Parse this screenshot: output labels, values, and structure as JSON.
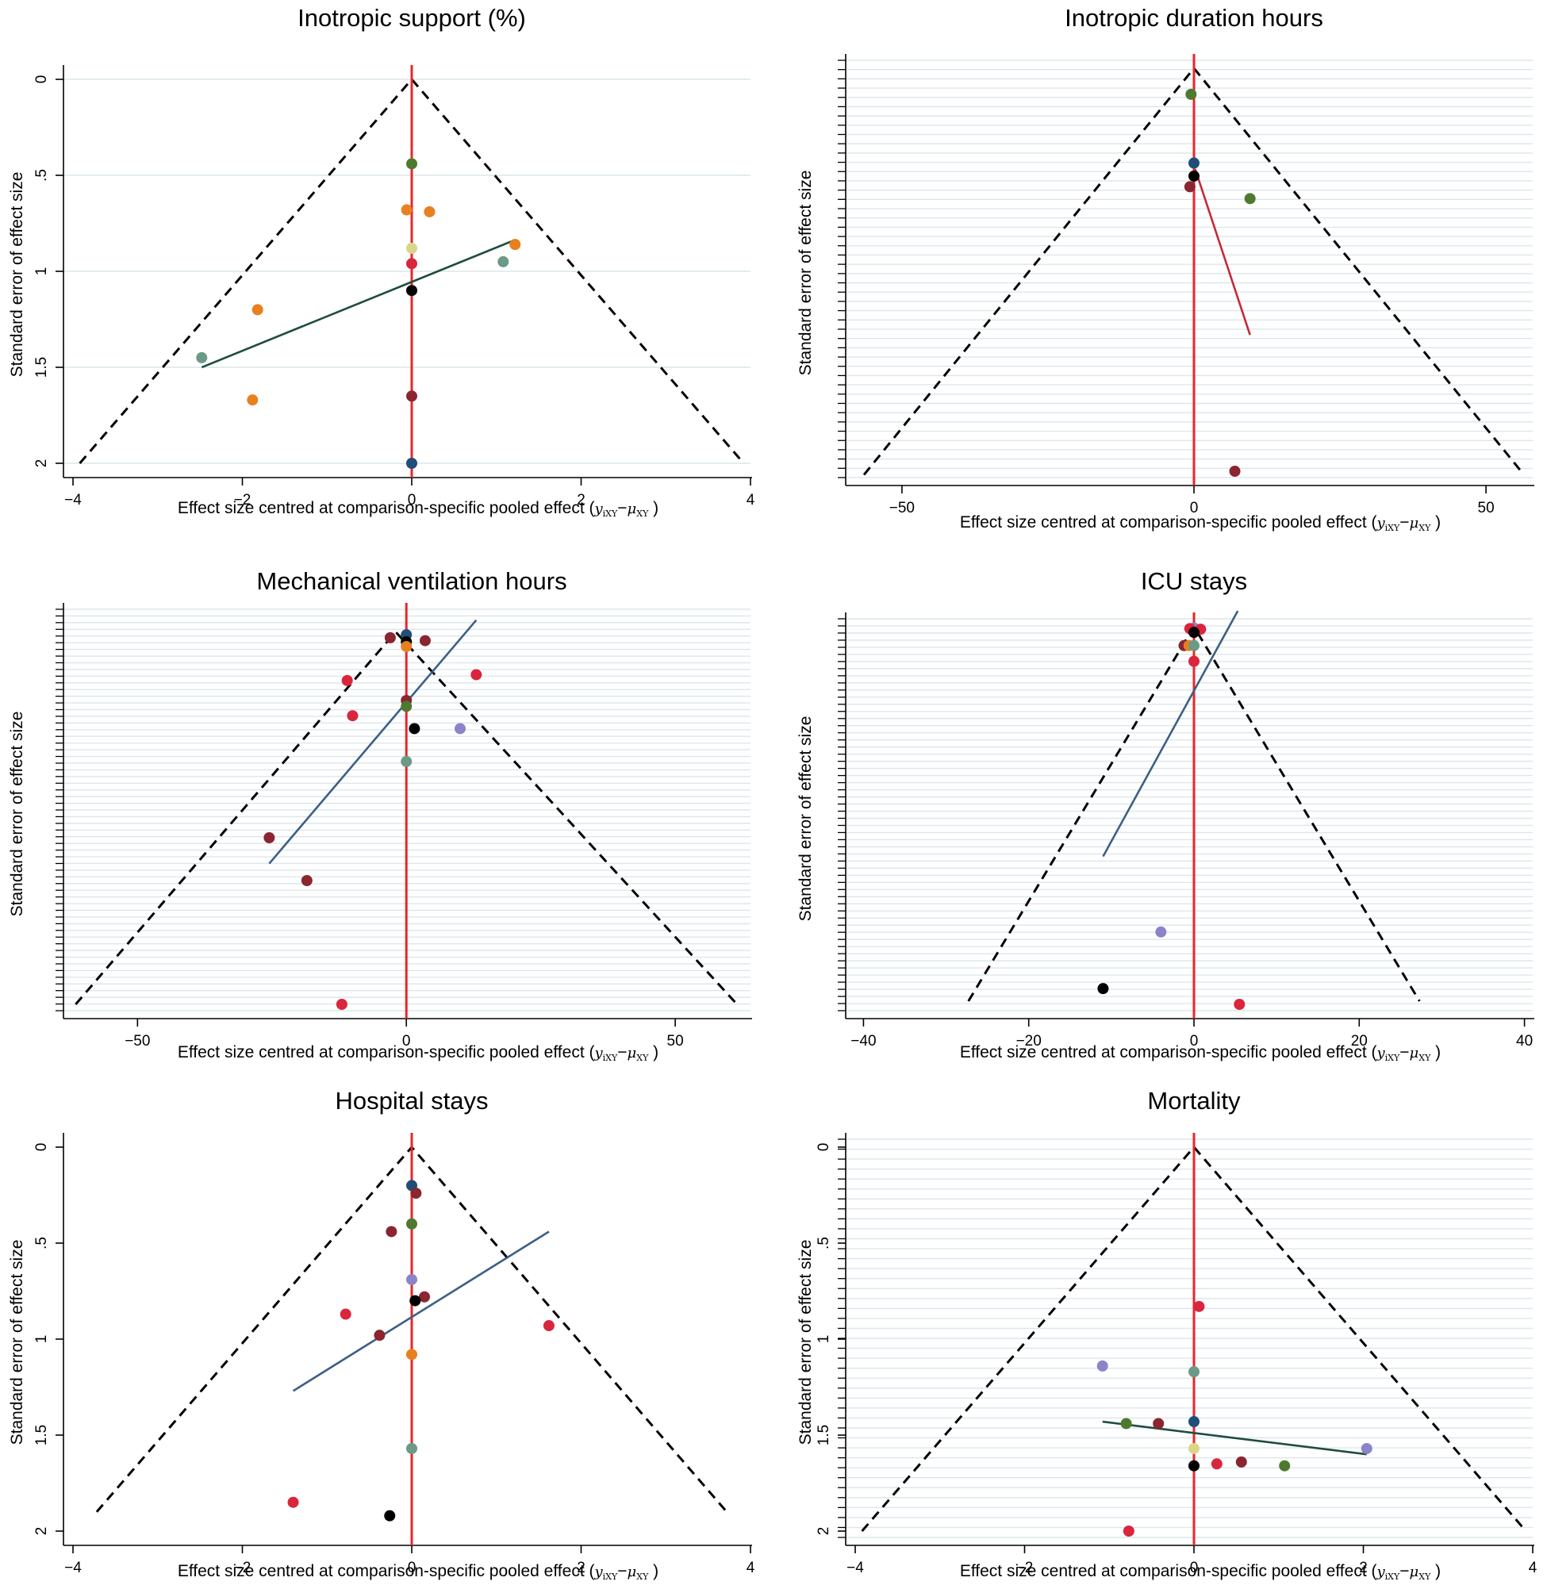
{
  "xlabel_text": "Effect size centred at comparison-specific pooled effect",
  "xlabel_symbol": {
    "y": "y",
    "y_sub": "iXY",
    "minus": "−",
    "mu": "μ",
    "mu_sub": "XY"
  },
  "ylabel_text": "Standard error of effect size",
  "colors": {
    "null_line": "#e8262b",
    "funnel": "#000000",
    "grid": "#dbe7ec",
    "axis": "#000000"
  },
  "chart_data": [
    {
      "type": "scatter",
      "title": "Inotropic support (%)",
      "xlim": [
        -4,
        4
      ],
      "ylim": [
        0,
        2
      ],
      "y_reversed": true,
      "xticks": [
        -4,
        -2,
        0,
        2,
        4
      ],
      "yticks": [
        0,
        0.5,
        1,
        1.5,
        2
      ],
      "ytick_labels": [
        "0",
        ".5",
        "1",
        "1.5",
        "2"
      ],
      "grid": "major",
      "funnel": {
        "apex": [
          0,
          0
        ],
        "base": [
          [
            -3.92,
            2.0
          ],
          [
            3.92,
            2.0
          ]
        ]
      },
      "fit_line": {
        "from": [
          -2.48,
          1.5
        ],
        "to": [
          1.2,
          0.84
        ],
        "color": "#1f4d3f"
      },
      "points": [
        {
          "x": 0,
          "y": 0.44,
          "color": "#4d7a2e"
        },
        {
          "x": -0.06,
          "y": 0.68,
          "color": "#e8801f"
        },
        {
          "x": 0.21,
          "y": 0.69,
          "color": "#e8801f"
        },
        {
          "x": 1.22,
          "y": 0.86,
          "color": "#e8801f"
        },
        {
          "x": 0,
          "y": 0.88,
          "color": "#d9d58a"
        },
        {
          "x": 1.08,
          "y": 0.95,
          "color": "#6b9a86"
        },
        {
          "x": 0,
          "y": 0.96,
          "color": "#d9263c"
        },
        {
          "x": 0,
          "y": 1.1,
          "color": "#000000"
        },
        {
          "x": -1.82,
          "y": 1.2,
          "color": "#e8801f"
        },
        {
          "x": -2.48,
          "y": 1.45,
          "color": "#6b9a86"
        },
        {
          "x": -1.88,
          "y": 1.67,
          "color": "#e8801f"
        },
        {
          "x": 0,
          "y": 1.65,
          "color": "#8b2530"
        },
        {
          "x": 0,
          "y": 2.0,
          "color": "#1f4e79"
        }
      ]
    },
    {
      "type": "scatter",
      "title": "Inotropic duration hours",
      "xlim": [
        -58,
        58
      ],
      "ylim": [
        0,
        34
      ],
      "y_reversed": true,
      "xticks": [
        -50,
        0,
        50
      ],
      "yticks": [],
      "ytick_labels": [],
      "grid": "dense",
      "minor_ticks": 45,
      "funnel": {
        "apex": [
          0,
          0
        ],
        "base": [
          [
            -56.5,
            34.3
          ],
          [
            56.5,
            34.3
          ]
        ]
      },
      "fit_line": {
        "from": [
          0.2,
          8.5
        ],
        "to": [
          9.6,
          22.5
        ],
        "color": "#c8283a"
      },
      "points": [
        {
          "x": -0.5,
          "y": 2.2,
          "color": "#4d7a2e"
        },
        {
          "x": 0,
          "y": 8.0,
          "color": "#1f4e79"
        },
        {
          "x": 0,
          "y": 9.1,
          "color": "#000000"
        },
        {
          "x": -0.7,
          "y": 10.0,
          "color": "#8b2530"
        },
        {
          "x": 9.6,
          "y": 11.0,
          "color": "#4d7a2e"
        },
        {
          "x": 7.0,
          "y": 34.0,
          "color": "#8b2530"
        }
      ]
    },
    {
      "type": "scatter",
      "title": "Mechanical ventilation hours",
      "xlim": [
        -62,
        64
      ],
      "ylim": [
        0,
        66
      ],
      "y_reversed": true,
      "xticks": [
        -50,
        0,
        50
      ],
      "yticks": [],
      "ytick_labels": [],
      "grid": "dense",
      "minor_ticks": 60,
      "funnel": {
        "apex": [
          -2,
          2.5
        ],
        "base": [
          [
            -61.5,
            66.0
          ],
          [
            61.5,
            66.0
          ]
        ]
      },
      "fit_line": {
        "from": [
          -25.5,
          42.0
        ],
        "to": [
          13.0,
          0.5
        ],
        "color": "#3d5f85"
      },
      "points": [
        {
          "x": -3.0,
          "y": 3.5,
          "color": "#8b2530"
        },
        {
          "x": 0,
          "y": 3.0,
          "color": "#1f4e79"
        },
        {
          "x": 0,
          "y": 4.2,
          "color": "#000000"
        },
        {
          "x": 0,
          "y": 5.0,
          "color": "#e8801f"
        },
        {
          "x": 3.5,
          "y": 4.0,
          "color": "#8b2530"
        },
        {
          "x": 13.0,
          "y": 9.8,
          "color": "#d9263c"
        },
        {
          "x": -11.0,
          "y": 10.8,
          "color": "#d9263c"
        },
        {
          "x": 0,
          "y": 14.2,
          "color": "#8b2530"
        },
        {
          "x": 0,
          "y": 15.2,
          "color": "#4d7a2e"
        },
        {
          "x": -10.0,
          "y": 16.8,
          "color": "#d9263c"
        },
        {
          "x": 1.5,
          "y": 19.0,
          "color": "#000000"
        },
        {
          "x": 10.0,
          "y": 19.0,
          "color": "#8c84c8"
        },
        {
          "x": 0,
          "y": 24.6,
          "color": "#6b9a86"
        },
        {
          "x": -25.5,
          "y": 37.6,
          "color": "#8b2530"
        },
        {
          "x": -18.5,
          "y": 44.9,
          "color": "#8b2530"
        },
        {
          "x": -12.0,
          "y": 66.0,
          "color": "#d9263c"
        }
      ]
    },
    {
      "type": "scatter",
      "title": "ICU stays",
      "xlim": [
        -41,
        41
      ],
      "ylim": [
        0,
        60
      ],
      "y_reversed": true,
      "xticks": [
        -40,
        -20,
        0,
        20,
        40
      ],
      "yticks": [],
      "ytick_labels": [],
      "grid": "dense",
      "minor_ticks": 55,
      "funnel": {
        "apex": [
          0,
          0
        ],
        "base": [
          [
            -27.3,
            59.5
          ],
          [
            27.3,
            59.5
          ]
        ]
      },
      "fit_line": {
        "from": [
          -11.0,
          36.5
        ],
        "to": [
          5.3,
          -2.5
        ],
        "color": "#3d5f85"
      },
      "points": [
        {
          "x": 0,
          "y": 0.2,
          "color": "#8c84c8"
        },
        {
          "x": -0.5,
          "y": 0.3,
          "color": "#d9263c"
        },
        {
          "x": 0.8,
          "y": 0.4,
          "color": "#d9263c"
        },
        {
          "x": 0,
          "y": 0.9,
          "color": "#000000"
        },
        {
          "x": -1.2,
          "y": 3.0,
          "color": "#8b2530"
        },
        {
          "x": -0.6,
          "y": 3.0,
          "color": "#e8801f"
        },
        {
          "x": 0,
          "y": 3.0,
          "color": "#6b9a86"
        },
        {
          "x": 0,
          "y": 5.5,
          "color": "#d9263c"
        },
        {
          "x": -4.0,
          "y": 48.5,
          "color": "#8c84c8"
        },
        {
          "x": -11.0,
          "y": 57.5,
          "color": "#000000"
        },
        {
          "x": 5.5,
          "y": 60.0,
          "color": "#d9263c"
        }
      ]
    },
    {
      "type": "scatter",
      "title": "Hospital stays",
      "xlim": [
        -4,
        4
      ],
      "ylim": [
        0,
        2
      ],
      "y_reversed": true,
      "xticks": [
        -4,
        -2,
        0,
        2,
        4
      ],
      "yticks": [
        0,
        0.5,
        1,
        1.5,
        2
      ],
      "ytick_labels": [
        "0",
        ".5",
        "1",
        "1.5",
        "2"
      ],
      "grid": "none",
      "funnel": {
        "apex": [
          0,
          0
        ],
        "base": [
          [
            -3.72,
            1.9
          ],
          [
            3.72,
            1.9
          ]
        ]
      },
      "fit_line": {
        "from": [
          -1.4,
          1.27
        ],
        "to": [
          1.62,
          0.44
        ],
        "color": "#3d5f85"
      },
      "points": [
        {
          "x": 0,
          "y": 0.2,
          "color": "#1f4e79"
        },
        {
          "x": 0.05,
          "y": 0.24,
          "color": "#8b2530"
        },
        {
          "x": 0,
          "y": 0.4,
          "color": "#4d7a2e"
        },
        {
          "x": -0.24,
          "y": 0.44,
          "color": "#8b2530"
        },
        {
          "x": 0,
          "y": 0.69,
          "color": "#8c84c8"
        },
        {
          "x": 0.15,
          "y": 0.78,
          "color": "#8b2530"
        },
        {
          "x": 0.04,
          "y": 0.8,
          "color": "#000000"
        },
        {
          "x": -0.78,
          "y": 0.87,
          "color": "#d9263c"
        },
        {
          "x": 1.62,
          "y": 0.93,
          "color": "#d9263c"
        },
        {
          "x": -0.38,
          "y": 0.98,
          "color": "#8b2530"
        },
        {
          "x": 0,
          "y": 1.08,
          "color": "#e8801f"
        },
        {
          "x": 0,
          "y": 1.57,
          "color": "#6b9a86"
        },
        {
          "x": -1.4,
          "y": 1.85,
          "color": "#d9263c"
        },
        {
          "x": -0.26,
          "y": 1.92,
          "color": "#000000"
        }
      ]
    },
    {
      "type": "scatter",
      "title": "Mortality",
      "xlim": [
        -4,
        4
      ],
      "ylim": [
        0,
        2
      ],
      "y_reversed": true,
      "xticks": [
        -4,
        -2,
        0,
        2,
        4
      ],
      "yticks": [
        0,
        0.5,
        1,
        1.5,
        2
      ],
      "ytick_labels": [
        "0",
        ".5",
        "1",
        "1.5",
        "2"
      ],
      "grid": "dense",
      "minor_ticks": 40,
      "funnel": {
        "apex": [
          0,
          0
        ],
        "base": [
          [
            -3.92,
            2.0
          ],
          [
            3.92,
            2.0
          ]
        ]
      },
      "fit_line": {
        "from": [
          -1.08,
          1.43
        ],
        "to": [
          2.04,
          1.6
        ],
        "color": "#1f4d3f"
      },
      "points": [
        {
          "x": 0.06,
          "y": 0.83,
          "color": "#d9263c"
        },
        {
          "x": -1.08,
          "y": 1.14,
          "color": "#8c84c8"
        },
        {
          "x": 0,
          "y": 1.17,
          "color": "#6b9a86"
        },
        {
          "x": 0,
          "y": 1.43,
          "color": "#1f4e79"
        },
        {
          "x": -0.8,
          "y": 1.44,
          "color": "#4d7a2e"
        },
        {
          "x": -0.42,
          "y": 1.44,
          "color": "#8b2530"
        },
        {
          "x": 2.04,
          "y": 1.57,
          "color": "#8c84c8"
        },
        {
          "x": 0,
          "y": 1.57,
          "color": "#d9d58a"
        },
        {
          "x": 0.27,
          "y": 1.65,
          "color": "#d9263c"
        },
        {
          "x": 0.56,
          "y": 1.64,
          "color": "#8b2530"
        },
        {
          "x": 0,
          "y": 1.66,
          "color": "#000000"
        },
        {
          "x": 1.07,
          "y": 1.66,
          "color": "#4d7a2e"
        },
        {
          "x": -0.77,
          "y": 2.0,
          "color": "#d9263c"
        }
      ]
    }
  ]
}
